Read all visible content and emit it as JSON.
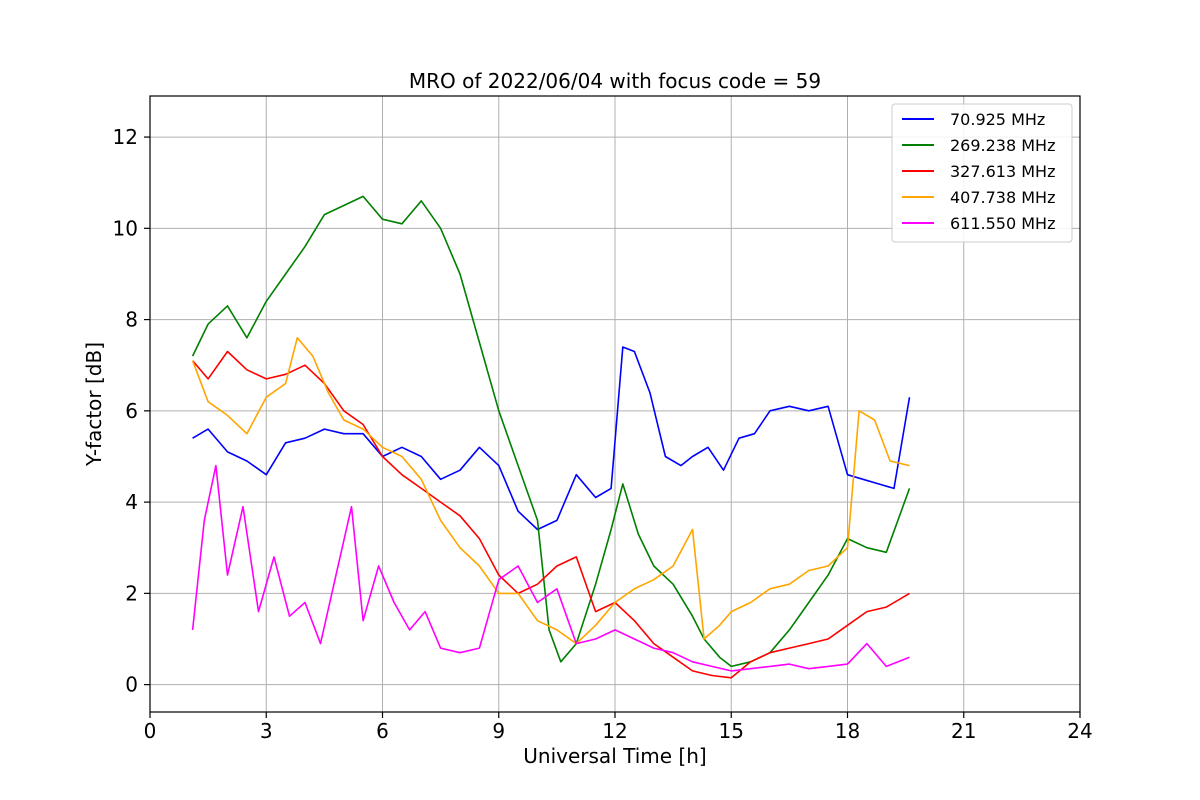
{
  "chart_data": {
    "type": "line",
    "title": "MRO of 2022/06/04 with focus code = 59",
    "xlabel": "Universal Time [h]",
    "ylabel": "Y-factor [dB]",
    "xlim": [
      0,
      24
    ],
    "ylim": [
      -0.6,
      12.9
    ],
    "xticks": [
      0,
      3,
      6,
      9,
      12,
      15,
      18,
      21,
      24
    ],
    "yticks": [
      0,
      2,
      4,
      6,
      8,
      10,
      12
    ],
    "grid": true,
    "legend_position": "top-right",
    "series": [
      {
        "name": "70.925 MHz",
        "color": "#0000ff",
        "x": [
          1.1,
          1.5,
          2.0,
          2.5,
          3.0,
          3.5,
          4.0,
          4.5,
          5.0,
          5.5,
          6.0,
          6.5,
          7.0,
          7.5,
          8.0,
          8.5,
          9.0,
          9.5,
          10.0,
          10.5,
          11.0,
          11.5,
          11.9,
          12.2,
          12.5,
          12.9,
          13.3,
          13.7,
          14.0,
          14.4,
          14.8,
          15.2,
          15.6,
          16.0,
          16.5,
          17.0,
          17.5,
          18.0,
          18.4,
          18.8,
          19.2,
          19.6
        ],
        "y": [
          5.4,
          5.6,
          5.1,
          4.9,
          4.6,
          5.3,
          5.4,
          5.6,
          5.5,
          5.5,
          5.0,
          5.2,
          5.0,
          4.5,
          4.7,
          5.2,
          4.8,
          3.8,
          3.4,
          3.6,
          4.6,
          4.1,
          4.3,
          7.4,
          7.3,
          6.4,
          5.0,
          4.8,
          5.0,
          5.2,
          4.7,
          5.4,
          5.5,
          6.0,
          6.1,
          6.0,
          6.1,
          4.6,
          4.5,
          4.4,
          4.3,
          6.3
        ]
      },
      {
        "name": "269.238 MHz",
        "color": "#008000",
        "x": [
          1.1,
          1.5,
          2.0,
          2.5,
          3.0,
          3.5,
          4.0,
          4.5,
          5.0,
          5.5,
          6.0,
          6.5,
          7.0,
          7.5,
          8.0,
          8.5,
          9.0,
          9.5,
          10.0,
          10.3,
          10.6,
          11.0,
          11.5,
          11.9,
          12.2,
          12.6,
          13.0,
          13.5,
          14.0,
          14.3,
          14.7,
          15.0,
          15.5,
          16.0,
          16.5,
          17.0,
          17.5,
          18.0,
          18.5,
          19.0,
          19.6
        ],
        "y": [
          7.2,
          7.9,
          8.3,
          7.6,
          8.4,
          9.0,
          9.6,
          10.3,
          10.5,
          10.7,
          10.2,
          10.1,
          10.6,
          10.0,
          9.0,
          7.5,
          6.0,
          4.8,
          3.6,
          1.2,
          0.5,
          0.9,
          2.2,
          3.4,
          4.4,
          3.3,
          2.6,
          2.2,
          1.5,
          1.0,
          0.6,
          0.4,
          0.5,
          0.7,
          1.2,
          1.8,
          2.4,
          3.2,
          3.0,
          2.9,
          4.3
        ]
      },
      {
        "name": "327.613 MHz",
        "color": "#ff0000",
        "x": [
          1.1,
          1.5,
          2.0,
          2.5,
          3.0,
          3.5,
          4.0,
          4.5,
          5.0,
          5.5,
          6.0,
          6.5,
          7.0,
          7.5,
          8.0,
          8.5,
          9.0,
          9.5,
          10.0,
          10.5,
          11.0,
          11.5,
          12.0,
          12.5,
          13.0,
          13.5,
          14.0,
          14.5,
          15.0,
          15.5,
          16.0,
          16.5,
          17.0,
          17.5,
          18.0,
          18.5,
          19.0,
          19.6
        ],
        "y": [
          7.1,
          6.7,
          7.3,
          6.9,
          6.7,
          6.8,
          7.0,
          6.6,
          6.0,
          5.7,
          5.0,
          4.6,
          4.3,
          4.0,
          3.7,
          3.2,
          2.4,
          2.0,
          2.2,
          2.6,
          2.8,
          1.6,
          1.8,
          1.4,
          0.9,
          0.6,
          0.3,
          0.2,
          0.15,
          0.5,
          0.7,
          0.8,
          0.9,
          1.0,
          1.3,
          1.6,
          1.7,
          2.0
        ]
      },
      {
        "name": "407.738 MHz",
        "color": "#ffa500",
        "x": [
          1.1,
          1.5,
          2.0,
          2.5,
          3.0,
          3.5,
          3.8,
          4.2,
          4.6,
          5.0,
          5.5,
          6.0,
          6.5,
          7.0,
          7.5,
          8.0,
          8.5,
          9.0,
          9.5,
          10.0,
          10.5,
          11.0,
          11.5,
          12.0,
          12.5,
          13.0,
          13.5,
          14.0,
          14.3,
          14.7,
          15.0,
          15.5,
          16.0,
          16.5,
          17.0,
          17.5,
          18.0,
          18.3,
          18.7,
          19.1,
          19.6
        ],
        "y": [
          7.1,
          6.2,
          5.9,
          5.5,
          6.3,
          6.6,
          7.6,
          7.2,
          6.4,
          5.8,
          5.6,
          5.2,
          5.0,
          4.5,
          3.6,
          3.0,
          2.6,
          2.0,
          2.0,
          1.4,
          1.2,
          0.9,
          1.3,
          1.8,
          2.1,
          2.3,
          2.6,
          3.4,
          1.0,
          1.3,
          1.6,
          1.8,
          2.1,
          2.2,
          2.5,
          2.6,
          3.0,
          6.0,
          5.8,
          4.9,
          4.8
        ]
      },
      {
        "name": "611.550 MHz",
        "color": "#ff00ff",
        "x": [
          1.1,
          1.4,
          1.7,
          2.0,
          2.4,
          2.8,
          3.2,
          3.6,
          4.0,
          4.4,
          4.8,
          5.2,
          5.5,
          5.9,
          6.3,
          6.7,
          7.1,
          7.5,
          8.0,
          8.5,
          9.0,
          9.5,
          10.0,
          10.5,
          11.0,
          11.5,
          12.0,
          12.5,
          13.0,
          13.5,
          14.0,
          14.5,
          15.0,
          15.5,
          16.0,
          16.5,
          17.0,
          17.5,
          18.0,
          18.5,
          19.0,
          19.6
        ],
        "y": [
          1.2,
          3.6,
          4.8,
          2.4,
          3.9,
          1.6,
          2.8,
          1.5,
          1.8,
          0.9,
          2.4,
          3.9,
          1.4,
          2.6,
          1.8,
          1.2,
          1.6,
          0.8,
          0.7,
          0.8,
          2.3,
          2.6,
          1.8,
          2.1,
          0.9,
          1.0,
          1.2,
          1.0,
          0.8,
          0.7,
          0.5,
          0.4,
          0.3,
          0.35,
          0.4,
          0.45,
          0.35,
          0.4,
          0.45,
          0.9,
          0.4,
          0.6
        ]
      }
    ]
  }
}
